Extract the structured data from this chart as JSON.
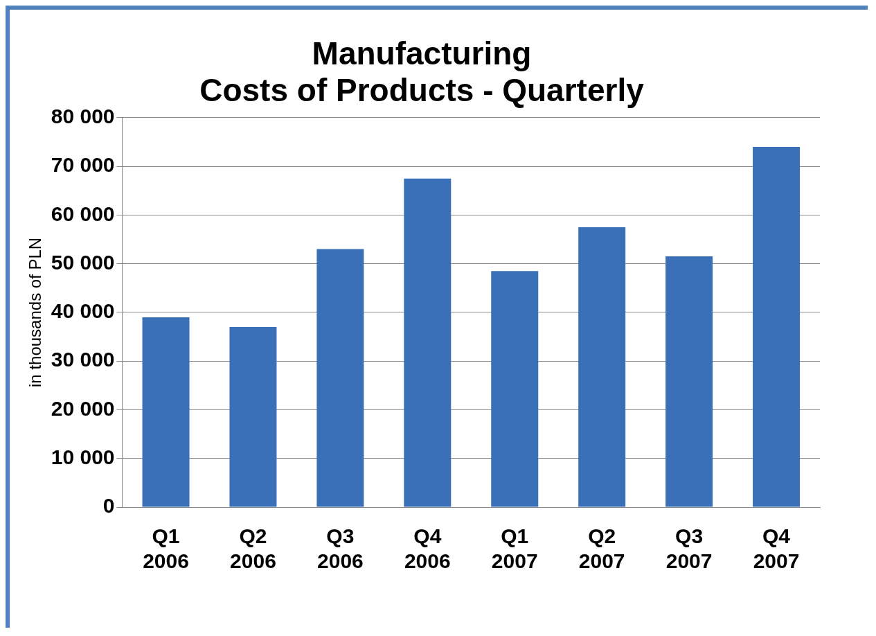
{
  "chart_data": {
    "type": "bar",
    "title": "Manufacturing\nCosts of Products - Quarterly",
    "ylabel": "in thousands of PLN",
    "categories": [
      "Q1 2006",
      "Q2 2006",
      "Q3 2006",
      "Q4 2006",
      "Q1 2007",
      "Q2 2007",
      "Q3 2007",
      "Q4 2007"
    ],
    "values": [
      39000,
      37000,
      53000,
      67500,
      48500,
      57500,
      51500,
      74000
    ],
    "color": "#3a70b8",
    "ylim": [
      0,
      80000
    ],
    "yticks": [
      {
        "value": 0,
        "label": "0"
      },
      {
        "value": 10000,
        "label": "10 000"
      },
      {
        "value": 20000,
        "label": "20 000"
      },
      {
        "value": 30000,
        "label": "30 000"
      },
      {
        "value": 40000,
        "label": "40 000"
      },
      {
        "value": 50000,
        "label": "50 000"
      },
      {
        "value": 60000,
        "label": "60 000"
      },
      {
        "value": 70000,
        "label": "70 000"
      },
      {
        "value": 80000,
        "label": "80 000"
      }
    ],
    "grid": "y",
    "legend": false
  }
}
